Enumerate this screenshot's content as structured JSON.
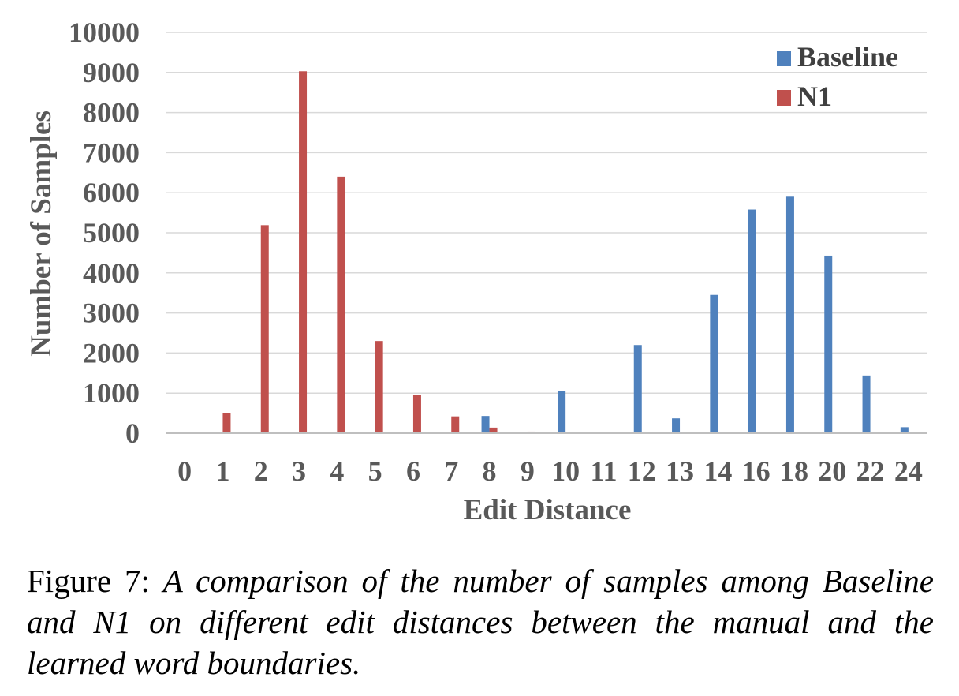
{
  "chart_data": {
    "type": "bar",
    "xlabel": "Edit Distance",
    "ylabel": "Number of Samples",
    "ylim": [
      0,
      10000
    ],
    "yticks": [
      0,
      1000,
      2000,
      3000,
      4000,
      5000,
      6000,
      7000,
      8000,
      9000,
      10000
    ],
    "grid": true,
    "legend_position": "top-right",
    "categories": [
      "0",
      "1",
      "2",
      "3",
      "4",
      "5",
      "6",
      "7",
      "8",
      "9",
      "10",
      "11",
      "12",
      "13",
      "14",
      "16",
      "18",
      "20",
      "22",
      "24"
    ],
    "series": [
      {
        "name": "Baseline",
        "color": "#4F81BD",
        "values": [
          0,
          0,
          0,
          0,
          0,
          0,
          0,
          0,
          430,
          0,
          1060,
          0,
          2200,
          370,
          3450,
          5580,
          5900,
          4430,
          1440,
          150
        ]
      },
      {
        "name": "N1",
        "color": "#C0504D",
        "values": [
          0,
          500,
          5190,
          9030,
          6400,
          2300,
          950,
          420,
          140,
          40,
          0,
          0,
          0,
          0,
          0,
          0,
          0,
          0,
          0,
          0
        ]
      }
    ]
  },
  "caption": {
    "label": "Figure 7:",
    "text": "A comparison of the number of samples among Baseline and N1 on different edit distances between the manual and the learned word boundaries."
  }
}
